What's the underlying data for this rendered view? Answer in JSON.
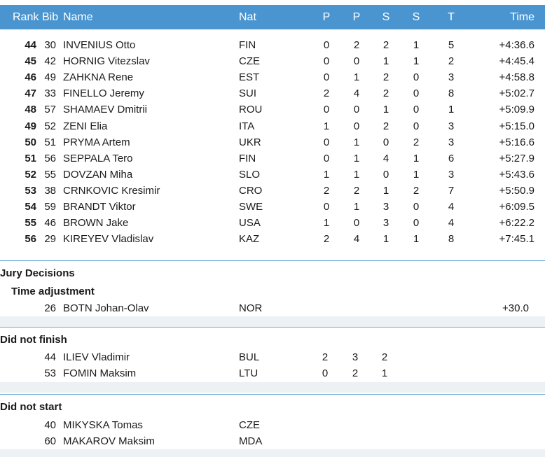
{
  "columns": {
    "rank": "Rank",
    "bib": "Bib",
    "name": "Name",
    "nat": "Nat",
    "p1": "P",
    "p2": "P",
    "s1": "S",
    "s2": "S",
    "t": "T",
    "time": "Time"
  },
  "results": [
    {
      "rank": "44",
      "bib": "30",
      "name": "INVENIUS Otto",
      "nat": "FIN",
      "p1": "0",
      "p2": "2",
      "s1": "2",
      "s2": "1",
      "t": "5",
      "time": "+4:36.6"
    },
    {
      "rank": "45",
      "bib": "42",
      "name": "HORNIG Vitezslav",
      "nat": "CZE",
      "p1": "0",
      "p2": "0",
      "s1": "1",
      "s2": "1",
      "t": "2",
      "time": "+4:45.4"
    },
    {
      "rank": "46",
      "bib": "49",
      "name": "ZAHKNA Rene",
      "nat": "EST",
      "p1": "0",
      "p2": "1",
      "s1": "2",
      "s2": "0",
      "t": "3",
      "time": "+4:58.8"
    },
    {
      "rank": "47",
      "bib": "33",
      "name": "FINELLO Jeremy",
      "nat": "SUI",
      "p1": "2",
      "p2": "4",
      "s1": "2",
      "s2": "0",
      "t": "8",
      "time": "+5:02.7"
    },
    {
      "rank": "48",
      "bib": "57",
      "name": "SHAMAEV Dmitrii",
      "nat": "ROU",
      "p1": "0",
      "p2": "0",
      "s1": "1",
      "s2": "0",
      "t": "1",
      "time": "+5:09.9"
    },
    {
      "rank": "49",
      "bib": "52",
      "name": "ZENI Elia",
      "nat": "ITA",
      "p1": "1",
      "p2": "0",
      "s1": "2",
      "s2": "0",
      "t": "3",
      "time": "+5:15.0"
    },
    {
      "rank": "50",
      "bib": "51",
      "name": "PRYMA Artem",
      "nat": "UKR",
      "p1": "0",
      "p2": "1",
      "s1": "0",
      "s2": "2",
      "t": "3",
      "time": "+5:16.6"
    },
    {
      "rank": "51",
      "bib": "56",
      "name": "SEPPALA Tero",
      "nat": "FIN",
      "p1": "0",
      "p2": "1",
      "s1": "4",
      "s2": "1",
      "t": "6",
      "time": "+5:27.9"
    },
    {
      "rank": "52",
      "bib": "55",
      "name": "DOVZAN Miha",
      "nat": "SLO",
      "p1": "1",
      "p2": "1",
      "s1": "0",
      "s2": "1",
      "t": "3",
      "time": "+5:43.6"
    },
    {
      "rank": "53",
      "bib": "38",
      "name": "CRNKOVIC Kresimir",
      "nat": "CRO",
      "p1": "2",
      "p2": "2",
      "s1": "1",
      "s2": "2",
      "t": "7",
      "time": "+5:50.9"
    },
    {
      "rank": "54",
      "bib": "59",
      "name": "BRANDT Viktor",
      "nat": "SWE",
      "p1": "0",
      "p2": "1",
      "s1": "3",
      "s2": "0",
      "t": "4",
      "time": "+6:09.5"
    },
    {
      "rank": "55",
      "bib": "46",
      "name": "BROWN Jake",
      "nat": "USA",
      "p1": "1",
      "p2": "0",
      "s1": "3",
      "s2": "0",
      "t": "4",
      "time": "+6:22.2"
    },
    {
      "rank": "56",
      "bib": "29",
      "name": "KIREYEV Vladislav",
      "nat": "KAZ",
      "p1": "2",
      "p2": "4",
      "s1": "1",
      "s2": "1",
      "t": "8",
      "time": "+7:45.1"
    }
  ],
  "jury": {
    "title": "Jury Decisions",
    "subtitle": "Time adjustment",
    "entry": {
      "bib": "26",
      "name": "BOTN Johan-Olav",
      "nat": "NOR",
      "time": "+30.0"
    }
  },
  "dnf": {
    "title": "Did not finish",
    "entries": [
      {
        "bib": "44",
        "name": "ILIEV Vladimir",
        "nat": "BUL",
        "p1": "2",
        "p2": "3",
        "s1": "2"
      },
      {
        "bib": "53",
        "name": "FOMIN Maksim",
        "nat": "LTU",
        "p1": "0",
        "p2": "2",
        "s1": "1"
      }
    ]
  },
  "dns": {
    "title": "Did not start",
    "entries": [
      {
        "bib": "40",
        "name": "MIKYSKA Tomas",
        "nat": "CZE"
      },
      {
        "bib": "60",
        "name": "MAKAROV Maksim",
        "nat": "MDA"
      }
    ]
  },
  "colors": {
    "header_bg": "#4a95d0",
    "header_text": "#ffffff",
    "divider": "#6aaad8",
    "band": "#edf1f4"
  }
}
